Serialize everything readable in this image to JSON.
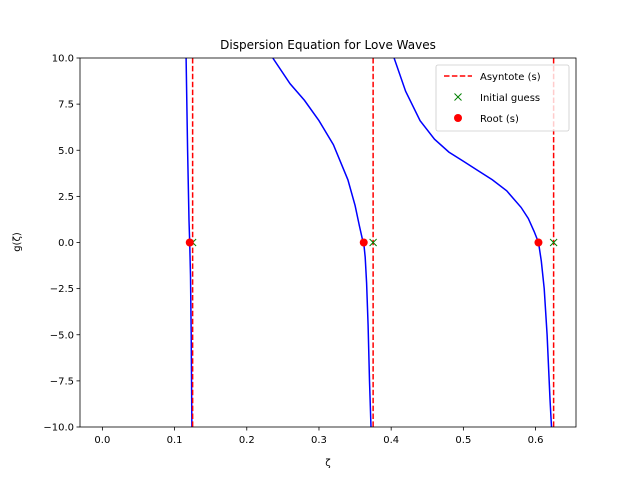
{
  "chart_data": {
    "type": "line",
    "title": "Dispersion Equation for Love Waves",
    "xlabel": "ζ",
    "ylabel": "g(ζ)",
    "xlim": [
      -0.031,
      0.656
    ],
    "ylim": [
      -10,
      10
    ],
    "xticks": [
      0.0,
      0.1,
      0.2,
      0.3,
      0.4,
      0.5,
      0.6
    ],
    "xtick_labels": [
      "0.0",
      "0.1",
      "0.2",
      "0.3",
      "0.4",
      "0.5",
      "0.6"
    ],
    "yticks": [
      -10,
      -7.5,
      -5,
      -2.5,
      0,
      2.5,
      5,
      7.5,
      10
    ],
    "ytick_labels": [
      "−10.0",
      "−7.5",
      "−5.0",
      "−2.5",
      "0.0",
      "2.5",
      "5.0",
      "7.5",
      "10.0"
    ],
    "grid": false,
    "legend_position": "top-right",
    "asymptotes": [
      0.125,
      0.375,
      0.625
    ],
    "initial_guesses": {
      "x": [
        0.125,
        0.375,
        0.625
      ],
      "y": [
        0,
        0,
        0
      ]
    },
    "roots": {
      "x": [
        0.121,
        0.362,
        0.604
      ],
      "y": [
        0,
        0,
        0
      ]
    },
    "curve_branches": [
      {
        "x": [
          0.116,
          0.118,
          0.12,
          0.121,
          0.122,
          0.123,
          0.124
        ],
        "y": [
          10,
          5.0,
          1.2,
          0,
          -1.8,
          -5.0,
          -10
        ]
      },
      {
        "x": [
          0.236,
          0.26,
          0.28,
          0.3,
          0.32,
          0.34,
          0.35,
          0.356,
          0.36,
          0.362,
          0.364,
          0.366,
          0.368,
          0.37,
          0.372
        ],
        "y": [
          10,
          8.6,
          7.7,
          6.6,
          5.3,
          3.4,
          2.0,
          0.9,
          0.2,
          0,
          -0.8,
          -2.2,
          -4.5,
          -7.5,
          -10
        ]
      },
      {
        "x": [
          0.404,
          0.42,
          0.44,
          0.46,
          0.48,
          0.5,
          0.52,
          0.54,
          0.56,
          0.58,
          0.59,
          0.598,
          0.604,
          0.608,
          0.612,
          0.616,
          0.62,
          0.622
        ],
        "y": [
          10,
          8.2,
          6.6,
          5.6,
          4.9,
          4.4,
          3.9,
          3.4,
          2.8,
          1.9,
          1.3,
          0.6,
          0,
          -1.0,
          -2.5,
          -5.0,
          -8.5,
          -10
        ]
      }
    ],
    "legend": [
      {
        "label": "Asyntote (s)",
        "kind": "dashed-line",
        "color": "#ff0000"
      },
      {
        "label": "Initial guess",
        "kind": "x-marker",
        "color": "#008000"
      },
      {
        "label": "Root (s)",
        "kind": "circle-marker",
        "color": "#ff0000"
      }
    ],
    "colors": {
      "curve": "#0000ff",
      "asymptote": "#ff0000",
      "guess": "#008000",
      "root": "#ff0000"
    }
  }
}
